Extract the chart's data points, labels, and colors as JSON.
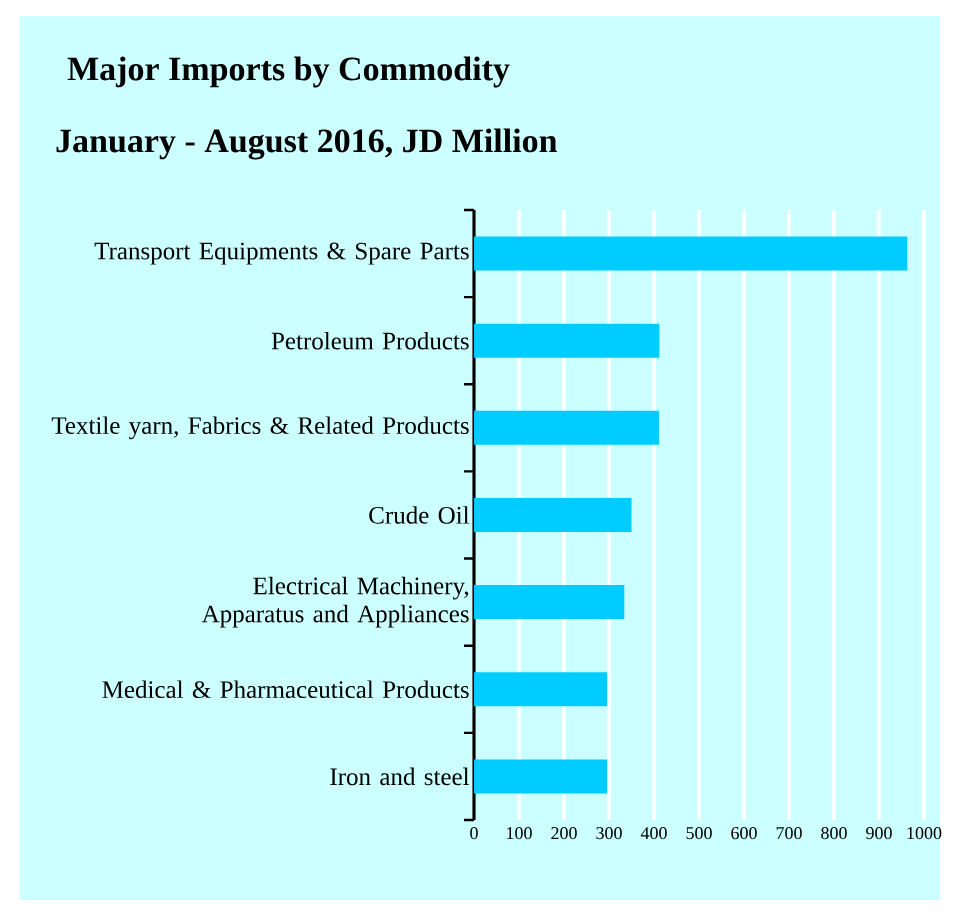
{
  "chart_data": {
    "type": "bar",
    "orientation": "horizontal",
    "title": "Major Imports by Commodity",
    "subtitle": "January - August 2016,  JD Million",
    "categories": [
      "Transport Equipments & Spare Parts",
      "Petroleum Products",
      "Textile yarn, Fabrics & Related Products",
      "Crude Oil",
      "Electrical Machinery, Apparatus and Appliances",
      "Medical & Pharmaceutical Products",
      "Iron and steel"
    ],
    "values": [
      963,
      412,
      411,
      350,
      334,
      296,
      296
    ],
    "color": "#00ccff",
    "xlim": [
      0,
      1000
    ],
    "xticks": [
      0,
      100,
      200,
      300,
      400,
      500,
      600,
      700,
      800,
      900,
      1000
    ],
    "grid": "x"
  }
}
